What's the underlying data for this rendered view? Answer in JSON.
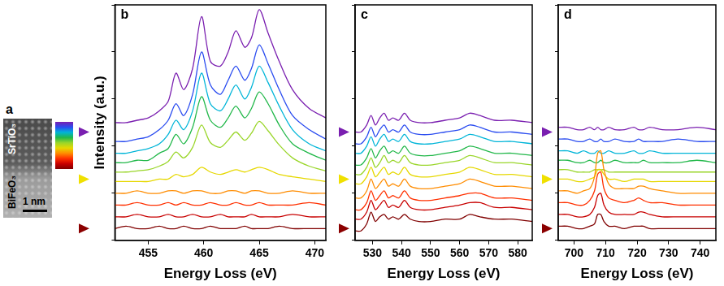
{
  "panel_a": {
    "letter": "a",
    "top_label": "SrTiO₃",
    "bottom_label": "BiFeO₃",
    "scale_bar": "1 nm",
    "colorbar_colors": [
      "#800000",
      "#c80000",
      "#ff3000",
      "#ff8c00",
      "#e6d800",
      "#9ad62a",
      "#22b84a",
      "#00b5d8",
      "#2a4cf0",
      "#7a1fb0"
    ]
  },
  "chart_data": [
    {
      "type": "line",
      "letter": "b",
      "x_label": "Energy Loss (eV)",
      "y_label": "Intensity (a.u.)",
      "xlim": [
        452,
        471
      ],
      "xticks": [
        455,
        460,
        465,
        470
      ],
      "ylim": [
        0,
        100
      ],
      "yticks": [
        0,
        20,
        40,
        60,
        80,
        100
      ],
      "tick_labels": "x",
      "grid": false,
      "arrows": [
        {
          "y": 46,
          "color": "#7a1fb0"
        },
        {
          "y": 26,
          "color": "#f0e000"
        },
        {
          "y": 5,
          "color": "#8b0000"
        }
      ],
      "x": [
        452,
        453,
        454,
        455,
        456,
        456.8,
        457.5,
        458.2,
        459,
        459.8,
        460.6,
        461.5,
        462.2,
        462.9,
        463.7,
        464.3,
        465,
        465.8,
        466.8,
        468,
        469.5,
        471
      ],
      "series": [
        {
          "color": "#800000",
          "values": [
            5,
            6,
            5,
            5,
            6,
            5,
            5,
            6,
            5,
            5,
            6,
            5,
            5,
            5,
            6,
            5,
            5,
            5,
            6,
            5,
            5,
            5
          ]
        },
        {
          "color": "#c80000",
          "values": [
            10,
            10,
            11,
            10,
            10,
            11,
            10,
            10,
            11,
            10,
            10,
            11,
            10,
            10,
            10,
            11,
            10,
            10,
            10,
            11,
            10,
            10
          ]
        },
        {
          "color": "#ff3000",
          "values": [
            15,
            15,
            16,
            15,
            15,
            16,
            15,
            16,
            15,
            15,
            16,
            15,
            15,
            16,
            15,
            15,
            16,
            15,
            15,
            15,
            16,
            15
          ]
        },
        {
          "color": "#ff8c00",
          "values": [
            20,
            20,
            21,
            20,
            20,
            21,
            21,
            20,
            21,
            21,
            20,
            20,
            21,
            21,
            20,
            21,
            21,
            20,
            20,
            21,
            20,
            20
          ]
        },
        {
          "color": "#e6d800",
          "values": [
            25,
            25,
            25,
            25,
            26,
            26,
            28,
            27,
            28,
            31,
            29,
            28,
            29,
            30,
            29,
            30,
            31,
            30,
            28,
            27,
            26,
            25
          ]
        },
        {
          "color": "#9ad62a",
          "values": [
            29,
            29,
            29.5,
            30,
            31.5,
            33.5,
            37.5,
            35,
            39.5,
            49,
            41.5,
            39.5,
            42.5,
            46,
            42.5,
            45.5,
            50.5,
            46.5,
            40.5,
            35,
            31.5,
            29.5
          ]
        },
        {
          "color": "#22b84a",
          "values": [
            33,
            33,
            34,
            34,
            37,
            39,
            45,
            41,
            48,
            61,
            51,
            48,
            52,
            57,
            52,
            56,
            63,
            58,
            49,
            41,
            37,
            34
          ]
        },
        {
          "color": "#00b5d8",
          "values": [
            37,
            37,
            38,
            39,
            41,
            45,
            51,
            47,
            55,
            71,
            58,
            55,
            60,
            66,
            60,
            65,
            74,
            67,
            57,
            47,
            41,
            38
          ]
        },
        {
          "color": "#2a4cf0",
          "values": [
            42,
            42,
            43,
            44,
            47,
            51,
            58,
            53,
            62,
            80,
            66,
            62,
            68,
            74,
            68,
            73,
            83,
            75,
            64,
            53,
            47,
            43
          ]
        },
        {
          "color": "#7a1fb0",
          "values": [
            50,
            50,
            51,
            52,
            55,
            59,
            71,
            64,
            73,
            95,
            76,
            74,
            80,
            89,
            82,
            86,
            98,
            88,
            76,
            64,
            56,
            52
          ]
        }
      ]
    },
    {
      "type": "line",
      "letter": "c",
      "x_label": "Energy Loss (eV)",
      "xlim": [
        524,
        585
      ],
      "xticks": [
        530,
        540,
        550,
        560,
        570,
        580
      ],
      "ylim": [
        0,
        100
      ],
      "yticks": [
        0,
        20,
        40,
        60,
        80,
        100
      ],
      "tick_labels": "x",
      "grid": false,
      "arrows": [
        {
          "y": 46,
          "color": "#7a1fb0"
        },
        {
          "y": 26,
          "color": "#f0e000"
        },
        {
          "y": 5,
          "color": "#8b0000"
        }
      ],
      "x": [
        524,
        526,
        528,
        529.5,
        531,
        532.5,
        534,
        535.5,
        537,
        539,
        541,
        543,
        546,
        550,
        555,
        560,
        563.5,
        567,
        572,
        578,
        585
      ],
      "series": [
        {
          "color": "#800000",
          "values": [
            4,
            4,
            7,
            12,
            8,
            10,
            11,
            9,
            10,
            9,
            11,
            9,
            8,
            8,
            9,
            9,
            11,
            10,
            9,
            9,
            8
          ]
        },
        {
          "color": "#c80000",
          "values": [
            9,
            9,
            12,
            17,
            13,
            15,
            17,
            14,
            15,
            14,
            17,
            14,
            13,
            13,
            14,
            15,
            16,
            16,
            14,
            14,
            13
          ]
        },
        {
          "color": "#ff3000",
          "values": [
            13,
            13,
            16,
            21,
            17,
            19,
            21,
            18,
            19,
            18,
            21,
            18,
            17,
            17,
            18,
            19,
            20,
            20,
            18,
            18,
            17
          ]
        },
        {
          "color": "#ff8c00",
          "values": [
            18,
            18,
            21,
            26,
            22,
            24,
            26,
            23,
            24,
            23,
            26,
            23,
            22,
            22,
            23,
            24,
            26,
            25,
            23,
            23,
            22
          ]
        },
        {
          "color": "#e6d800",
          "values": [
            24,
            24,
            27,
            31,
            27,
            29,
            31,
            28,
            29,
            28,
            31,
            28,
            27,
            27,
            28,
            29,
            31,
            30,
            28,
            28,
            27
          ]
        },
        {
          "color": "#9ad62a",
          "values": [
            28,
            28,
            31,
            35,
            31,
            33,
            36,
            33,
            34,
            33,
            36,
            33,
            32,
            32,
            33,
            34,
            36,
            35,
            33,
            33,
            32
          ]
        },
        {
          "color": "#22b84a",
          "values": [
            32,
            32,
            35,
            39,
            35,
            38,
            40,
            37,
            38,
            37,
            40,
            37,
            36,
            36,
            37,
            38,
            40,
            39,
            37,
            37,
            36
          ]
        },
        {
          "color": "#00b5d8",
          "values": [
            37,
            37,
            40,
            44,
            40,
            43,
            45,
            42,
            43,
            42,
            45,
            42,
            41,
            41,
            42,
            43,
            45,
            44,
            42,
            42,
            41
          ]
        },
        {
          "color": "#2a4cf0",
          "values": [
            41,
            41,
            44,
            48,
            44,
            47,
            49,
            46,
            47,
            46,
            49,
            46,
            45,
            45,
            46,
            47,
            49,
            48,
            46,
            46,
            45
          ]
        },
        {
          "color": "#7a1fb0",
          "values": [
            46,
            46,
            49,
            53,
            49,
            52,
            54,
            51,
            52,
            51,
            54,
            51,
            50,
            50,
            51,
            52,
            54,
            53,
            51,
            51,
            50
          ]
        }
      ]
    },
    {
      "type": "line",
      "letter": "d",
      "x_label": "Energy Loss (eV)",
      "xlim": [
        695,
        745
      ],
      "xticks": [
        700,
        710,
        720,
        730,
        740
      ],
      "ylim": [
        0,
        100
      ],
      "yticks": [
        0,
        20,
        40,
        60,
        80,
        100
      ],
      "tick_labels": "x",
      "grid": false,
      "arrows": [
        {
          "y": 46,
          "color": "#7a1fb0"
        },
        {
          "y": 26,
          "color": "#f0e000"
        },
        {
          "y": 5,
          "color": "#8b0000"
        }
      ],
      "x": [
        695,
        698,
        701,
        703,
        705,
        706.5,
        707.5,
        708.5,
        709.5,
        711,
        713,
        716,
        719,
        720.5,
        722,
        724,
        728,
        733,
        739,
        745
      ],
      "series": [
        {
          "color": "#800000",
          "values": [
            6,
            6,
            5,
            5,
            6,
            7,
            11,
            11,
            8,
            6,
            6,
            5,
            6,
            6,
            6,
            5,
            5,
            5,
            5,
            5
          ]
        },
        {
          "color": "#c80000",
          "values": [
            11,
            11,
            10,
            10,
            11,
            14,
            19,
            20,
            15,
            12,
            11,
            11,
            11,
            12,
            12,
            11,
            10,
            10,
            10,
            10
          ]
        },
        {
          "color": "#ff3000",
          "values": [
            16,
            16,
            15,
            15,
            17,
            21,
            28,
            29,
            22,
            18,
            17,
            16,
            17,
            18,
            17,
            16,
            16,
            15,
            15,
            15
          ]
        },
        {
          "color": "#ff8c00",
          "values": [
            21,
            21,
            20,
            21,
            22,
            27,
            37,
            38,
            30,
            24,
            22,
            22,
            22,
            23,
            23,
            22,
            21,
            20,
            20,
            20
          ]
        },
        {
          "color": "#e6d800",
          "values": [
            26,
            26,
            25,
            25,
            26,
            27,
            30,
            30,
            28,
            26,
            26,
            25,
            26,
            26,
            26,
            25,
            25,
            25,
            25,
            25
          ]
        },
        {
          "color": "#9ad62a",
          "values": [
            30,
            30,
            29,
            29,
            29,
            30,
            30,
            30,
            30,
            29,
            29,
            29,
            29,
            29,
            29,
            29,
            29,
            29,
            29,
            29
          ]
        },
        {
          "color": "#22b84a",
          "values": [
            34,
            34,
            33,
            33,
            34,
            33,
            33,
            34,
            33,
            33,
            34,
            33,
            33,
            33,
            34,
            33,
            33,
            33,
            34,
            33
          ]
        },
        {
          "color": "#00b5d8",
          "values": [
            38,
            38,
            37,
            38,
            37,
            37,
            38,
            37,
            37,
            38,
            37,
            37,
            38,
            37,
            37,
            38,
            37,
            37,
            37,
            37
          ]
        },
        {
          "color": "#2a4cf0",
          "values": [
            43,
            43,
            42,
            42,
            43,
            42,
            42,
            43,
            42,
            42,
            43,
            42,
            42,
            43,
            42,
            42,
            42,
            43,
            42,
            42
          ]
        },
        {
          "color": "#7a1fb0",
          "values": [
            48,
            48,
            47,
            47,
            48,
            47,
            48,
            47,
            47,
            48,
            47,
            47,
            48,
            47,
            47,
            48,
            47,
            47,
            48,
            47
          ]
        }
      ]
    }
  ]
}
